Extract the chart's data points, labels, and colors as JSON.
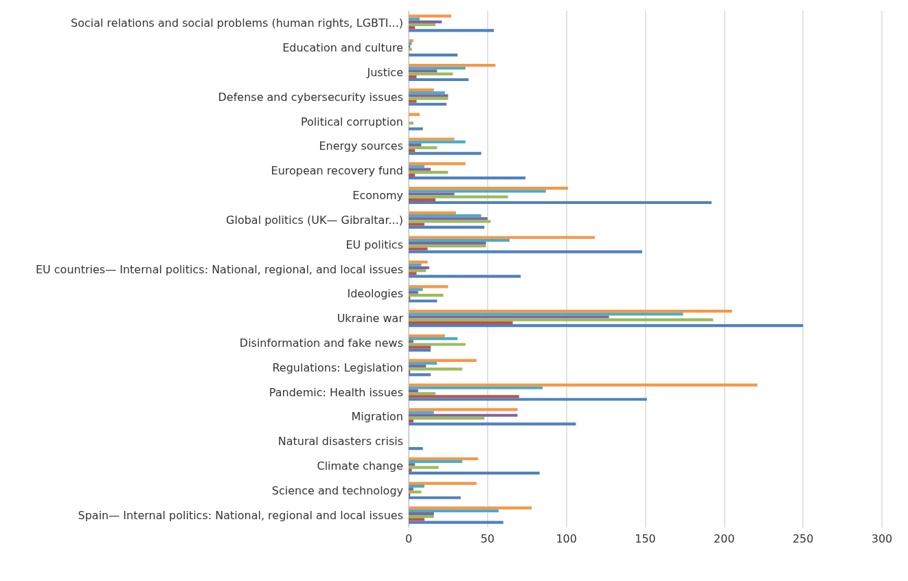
{
  "chart_data": {
    "type": "bar",
    "orientation": "horizontal",
    "categories": [
      "Social relations and social problems (human rights, LGBTI...)",
      "Education and culture",
      "Justice",
      "Defense and cybersecurity issues",
      "Political corruption",
      "Energy sources",
      "European recovery fund",
      "Economy",
      "Global politics (UK— Gibraltar...)",
      "EU politics",
      "EU countries— Internal politics: National, regional, and local issues",
      "Ideologies",
      "Ukraine war",
      "Disinformation and fake news",
      "Regulations: Legislation",
      "Pandemic: Health issues",
      "Migration",
      "Natural disasters crisis",
      "Climate change",
      "Science and technology",
      "Spain— Internal politics: National, regional and local issues"
    ],
    "series": [
      {
        "color": "#f79646",
        "values": [
          27,
          3,
          55,
          16,
          7,
          29,
          36,
          101,
          30,
          118,
          12,
          25,
          205,
          23,
          43,
          221,
          69,
          null,
          44,
          43,
          78
        ]
      },
      {
        "color": "#4bacc6",
        "values": [
          7,
          2,
          36,
          23,
          null,
          36,
          10,
          87,
          46,
          64,
          8,
          9,
          174,
          31,
          18,
          85,
          16,
          null,
          34,
          10,
          57
        ]
      },
      {
        "color": "#8064a2",
        "values": [
          21,
          1,
          18,
          25,
          null,
          8,
          14,
          29,
          50,
          49,
          13,
          6,
          127,
          3,
          11,
          6,
          69,
          null,
          4,
          3,
          16
        ]
      },
      {
        "color": "#9bbb59",
        "values": [
          17,
          2,
          28,
          25,
          3,
          18,
          25,
          63,
          52,
          49,
          11,
          22,
          193,
          36,
          34,
          17,
          48,
          null,
          19,
          8,
          16
        ]
      },
      {
        "color": "#c0504d",
        "values": [
          4,
          null,
          5,
          5,
          null,
          4,
          4,
          17,
          10,
          12,
          5,
          1,
          66,
          14,
          1,
          70,
          3,
          null,
          2,
          1,
          10
        ]
      },
      {
        "color": "#4f81bd",
        "values": [
          54,
          31,
          38,
          24,
          9,
          46,
          74,
          192,
          48,
          148,
          71,
          18,
          250,
          14,
          14,
          151,
          106,
          9,
          83,
          33,
          60
        ]
      }
    ],
    "xlim": [
      0,
      300
    ],
    "xticks": [
      0,
      50,
      100,
      150,
      200,
      250,
      300
    ],
    "grid": "x"
  }
}
